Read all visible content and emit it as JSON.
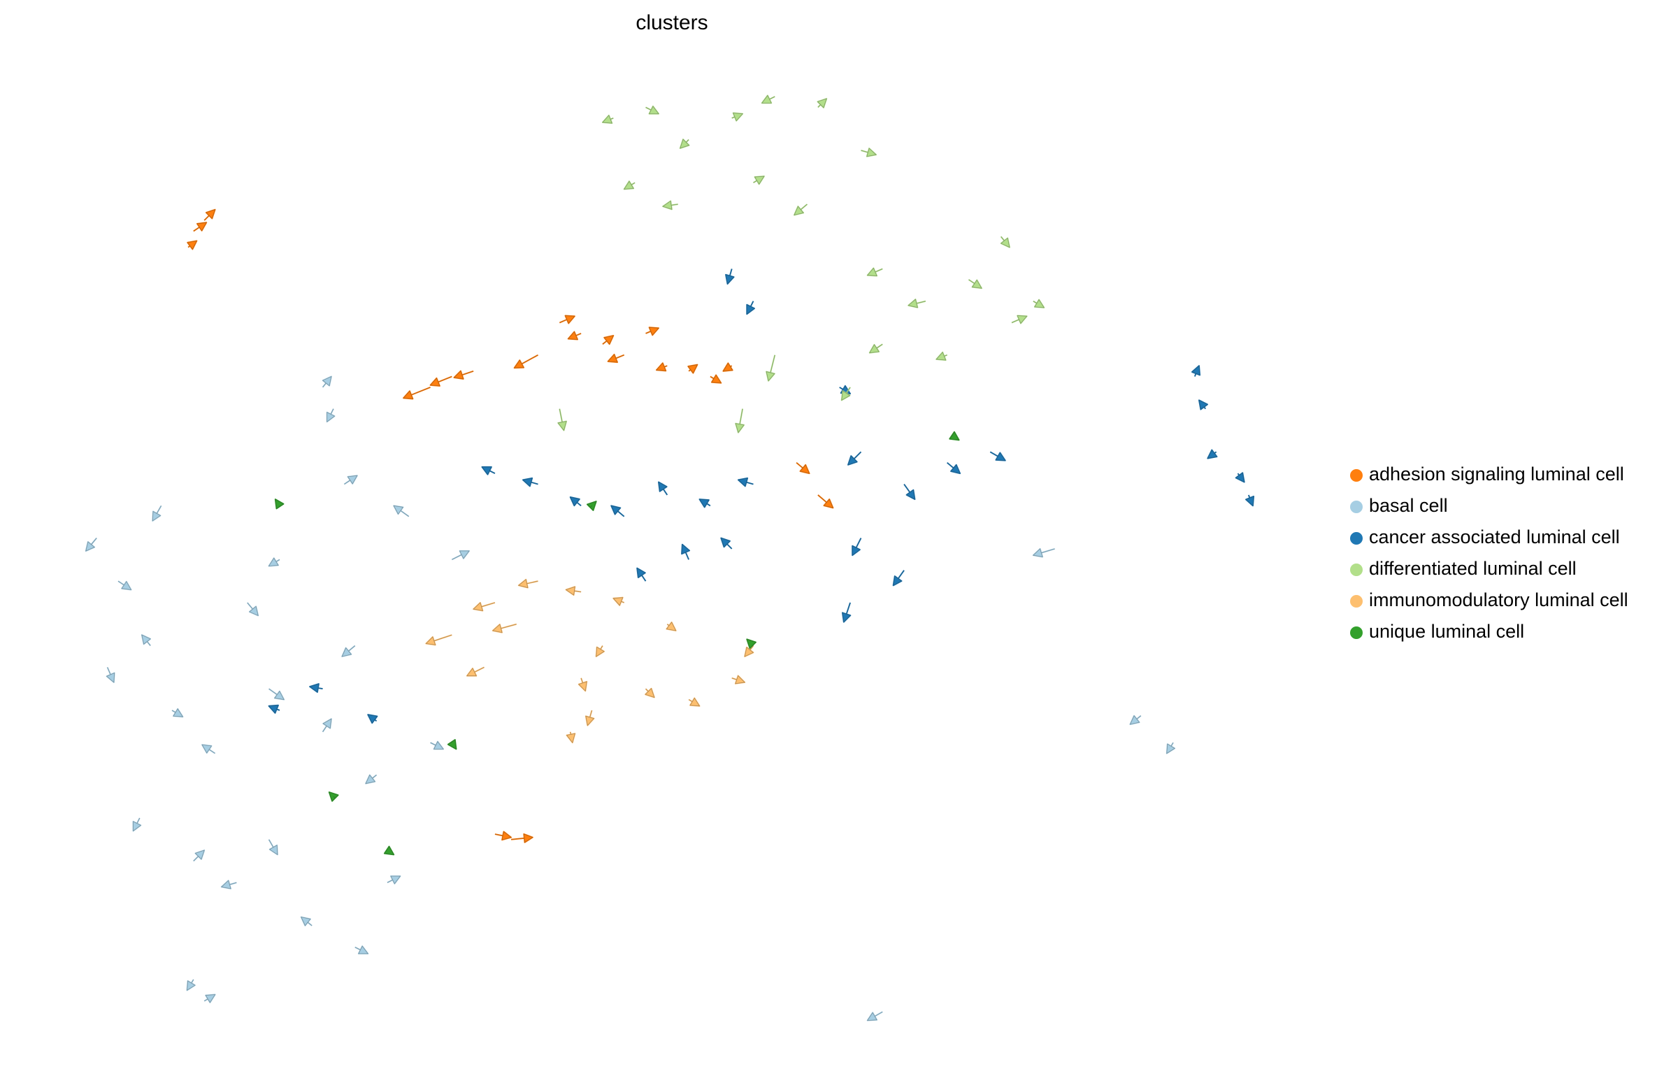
{
  "chart_data": {
    "type": "quiver",
    "title": "clusters",
    "legend": "right",
    "xlim": [
      0,
      1130
    ],
    "ylim": [
      0,
      885
    ],
    "series": [
      {
        "name": "adhesion signaling luminal cell",
        "color": "#ff7f0e",
        "x": [
          120,
          130,
          115,
          340,
          360,
          380,
          440,
          460,
          480,
          500,
          520,
          540,
          560,
          580,
          600,
          620,
          400,
          415,
          680,
          700
        ],
        "y": [
          745,
          755,
          730,
          600,
          610,
          615,
          630,
          660,
          650,
          640,
          630,
          650,
          620,
          615,
          610,
          620,
          185,
          180,
          530,
          500
        ],
        "u": [
          12,
          10,
          8,
          -25,
          -20,
          -18,
          -22,
          14,
          -12,
          10,
          -15,
          12,
          -10,
          8,
          10,
          -8,
          15,
          20,
          12,
          14
        ],
        "v": [
          8,
          10,
          6,
          -10,
          -8,
          -6,
          -12,
          6,
          -5,
          8,
          -6,
          5,
          -4,
          6,
          -6,
          -5,
          -3,
          2,
          -10,
          -12
        ]
      },
      {
        "name": "basal cell",
        "color": "#a6cee3",
        "x": [
          30,
          50,
          80,
          40,
          100,
          140,
          190,
          240,
          290,
          340,
          70,
          120,
          160,
          190,
          230,
          270,
          120,
          130,
          240,
          250,
          260,
          200,
          320,
          360,
          170,
          270,
          90,
          300,
          1000,
          1030,
          760,
          920
        ],
        "y": [
          460,
          420,
          360,
          340,
          300,
          260,
          320,
          280,
          240,
          270,
          200,
          160,
          140,
          180,
          100,
          80,
          50,
          30,
          600,
          580,
          510,
          440,
          480,
          440,
          400,
          360,
          490,
          140,
          295,
          270,
          20,
          450
        ],
        "u": [
          -10,
          12,
          -8,
          6,
          10,
          -12,
          14,
          8,
          -10,
          12,
          -6,
          10,
          -14,
          8,
          -10,
          12,
          -6,
          10,
          8,
          -6,
          12,
          -10,
          -14,
          16,
          10,
          -12,
          -8,
          12,
          -10,
          -6,
          -14,
          -20
        ],
        "v": [
          -12,
          -8,
          10,
          -14,
          -6,
          8,
          -10,
          12,
          -8,
          -6,
          -12,
          10,
          -4,
          -14,
          8,
          -6,
          -10,
          6,
          10,
          -12,
          8,
          -6,
          10,
          8,
          -12,
          -10,
          -14,
          6,
          -8,
          -10,
          -8,
          -6
        ]
      },
      {
        "name": "cancer associated luminal cell",
        "color": "#1f78b4",
        "x": [
          400,
          440,
          480,
          520,
          560,
          600,
          640,
          580,
          540,
          620,
          740,
          780,
          820,
          860,
          740,
          780,
          730,
          1050,
          1060,
          1070,
          1090,
          1100,
          620,
          640,
          200,
          240,
          290,
          720
        ],
        "y": [
          520,
          510,
          490,
          480,
          500,
          490,
          510,
          440,
          420,
          450,
          540,
          510,
          530,
          540,
          460,
          430,
          400,
          610,
          580,
          540,
          520,
          500,
          710,
          680,
          300,
          320,
          290,
          600
        ],
        "u": [
          -12,
          -14,
          -10,
          -12,
          -8,
          -10,
          -14,
          -6,
          -8,
          -10,
          -12,
          10,
          12,
          14,
          -8,
          -10,
          -6,
          4,
          -6,
          -8,
          6,
          4,
          -4,
          -6,
          -10,
          -12,
          -8,
          10
        ],
        "v": [
          6,
          4,
          8,
          10,
          12,
          6,
          4,
          14,
          12,
          10,
          -12,
          -14,
          -10,
          -8,
          -16,
          -14,
          -18,
          10,
          8,
          -6,
          -8,
          -10,
          -14,
          -12,
          4,
          2,
          6,
          -6
        ]
      },
      {
        "name": "differentiated luminal cell",
        "color": "#b2df8a",
        "x": [
          510,
          540,
          580,
          620,
          660,
          700,
          740,
          530,
          570,
          640,
          690,
          760,
          800,
          840,
          880,
          900,
          820,
          760,
          870,
          460,
          660,
          630,
          730
        ],
        "y": [
          850,
          860,
          830,
          850,
          870,
          860,
          820,
          790,
          770,
          790,
          770,
          710,
          680,
          700,
          660,
          680,
          630,
          640,
          740,
          580,
          630,
          580,
          600
        ],
        "u": [
          -10,
          12,
          -8,
          10,
          -12,
          8,
          14,
          -10,
          -14,
          10,
          -12,
          -14,
          -16,
          12,
          14,
          10,
          -10,
          -12,
          8,
          4,
          -6,
          -4,
          -8
        ],
        "v": [
          -4,
          -6,
          -8,
          4,
          -6,
          8,
          -4,
          -6,
          -2,
          6,
          -10,
          -6,
          -4,
          -8,
          6,
          -6,
          -4,
          -8,
          -10,
          -20,
          -24,
          -22,
          -12
        ]
      },
      {
        "name": "immunomodulatory luminal cell",
        "color": "#fdbf6f",
        "x": [
          360,
          400,
          440,
          480,
          520,
          560,
          500,
          480,
          490,
          470,
          540,
          580,
          620,
          640,
          420,
          390
        ],
        "y": [
          370,
          400,
          420,
          410,
          400,
          380,
          360,
          330,
          300,
          280,
          320,
          310,
          330,
          360,
          380,
          340
        ],
        "u": [
          -24,
          -20,
          -18,
          -14,
          -10,
          8,
          -6,
          4,
          -4,
          2,
          8,
          10,
          12,
          -8,
          -22,
          -16
        ],
        "v": [
          -8,
          -6,
          -4,
          2,
          4,
          -6,
          -10,
          -12,
          -14,
          -10,
          -8,
          -6,
          -4,
          -10,
          -6,
          -8
        ]
      },
      {
        "name": "unique luminal cell",
        "color": "#33a02c",
        "x": [
          360,
          250,
          300,
          640,
          490,
          825,
          200
        ],
        "y": [
          270,
          220,
          170,
          360,
          490,
          555,
          490
        ],
        "u": [
          4,
          -4,
          6,
          -6,
          4,
          6,
          -4
        ],
        "v": [
          -6,
          4,
          -4,
          6,
          4,
          -4,
          6
        ]
      }
    ]
  }
}
